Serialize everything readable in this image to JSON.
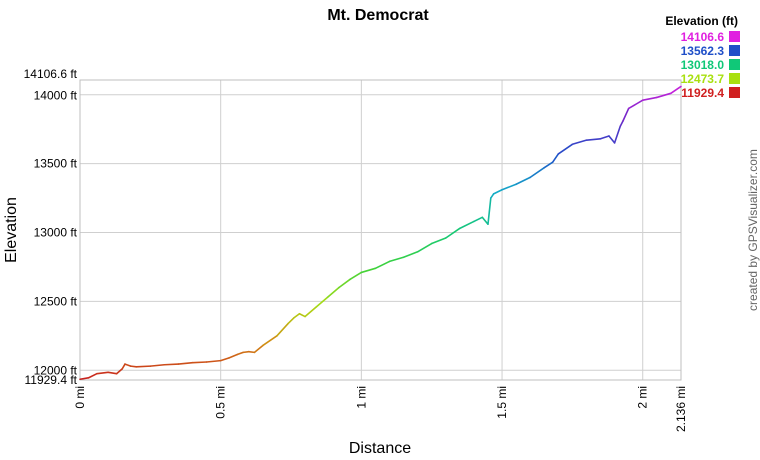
{
  "chart_data": {
    "type": "line",
    "title": "Mt. Democrat",
    "xlabel": "Distance",
    "ylabel": "Elevation",
    "xlim": [
      0,
      2.136
    ],
    "ylim": [
      11929.4,
      14106.6
    ],
    "x_ticks": [
      {
        "value": 0,
        "label": "0 mi"
      },
      {
        "value": 0.5,
        "label": "0.5 mi"
      },
      {
        "value": 1,
        "label": "1 mi"
      },
      {
        "value": 1.5,
        "label": "1.5 mi"
      },
      {
        "value": 2,
        "label": "2 mi"
      },
      {
        "value": 2.136,
        "label": "2.136 mi"
      }
    ],
    "y_ticks": [
      {
        "value": 11929.4,
        "label": "11929.4 ft"
      },
      {
        "value": 12000,
        "label": "12000 ft"
      },
      {
        "value": 12500,
        "label": "12500 ft"
      },
      {
        "value": 13000,
        "label": "13000 ft"
      },
      {
        "value": 13500,
        "label": "13500 ft"
      },
      {
        "value": 14000,
        "label": "14000 ft"
      },
      {
        "value": 14106.6,
        "label": "14106.6 ft"
      }
    ],
    "grid": true,
    "legend": {
      "title": "Elevation (ft)",
      "position": "top-right",
      "entries": [
        {
          "label": "14106.6",
          "color": "#e020e0"
        },
        {
          "label": "13562.3",
          "color": "#1f4fc8"
        },
        {
          "label": "13018.0",
          "color": "#10c878"
        },
        {
          "label": "12473.7",
          "color": "#a8e010"
        },
        {
          "label": "11929.4",
          "color": "#d02020"
        }
      ]
    },
    "credit": "created by GPSVisualizer.com",
    "series": [
      {
        "x": [
          0,
          0.03,
          0.06,
          0.1,
          0.13,
          0.15,
          0.16,
          0.18,
          0.2,
          0.25,
          0.3,
          0.35,
          0.4,
          0.45,
          0.5,
          0.53,
          0.56,
          0.58,
          0.6,
          0.62,
          0.65,
          0.7,
          0.74,
          0.76,
          0.78,
          0.8,
          0.84,
          0.88,
          0.92,
          0.96,
          1.0,
          1.05,
          1.1,
          1.15,
          1.2,
          1.25,
          1.3,
          1.35,
          1.4,
          1.43,
          1.45,
          1.46,
          1.47,
          1.5,
          1.55,
          1.6,
          1.65,
          1.68,
          1.7,
          1.75,
          1.8,
          1.85,
          1.88,
          1.9,
          1.92,
          1.93,
          1.95,
          2.0,
          2.05,
          2.1,
          2.136
        ],
        "y": [
          11935,
          11945,
          11975,
          11985,
          11975,
          12010,
          12045,
          12030,
          12025,
          12030,
          12040,
          12045,
          12055,
          12060,
          12070,
          12090,
          12115,
          12130,
          12135,
          12130,
          12180,
          12250,
          12340,
          12380,
          12410,
          12390,
          12460,
          12530,
          12600,
          12660,
          12710,
          12740,
          12790,
          12820,
          12860,
          12920,
          12960,
          13030,
          13080,
          13110,
          13060,
          13250,
          13280,
          13310,
          13350,
          13400,
          13470,
          13510,
          13570,
          13640,
          13670,
          13680,
          13700,
          13650,
          13770,
          13810,
          13900,
          13960,
          13980,
          14010,
          14060
        ]
      }
    ]
  }
}
